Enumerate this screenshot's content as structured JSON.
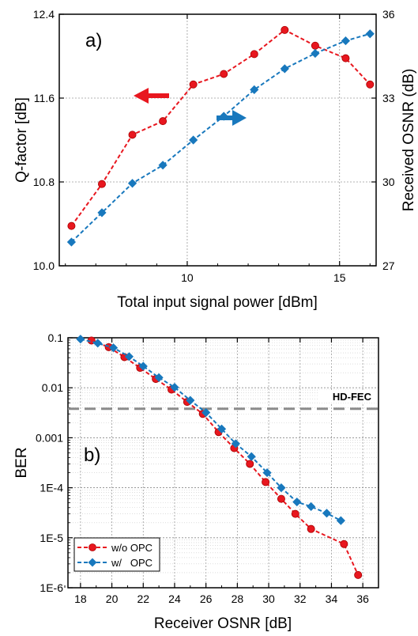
{
  "chart_data": [
    {
      "type": "line",
      "panel_label": "a)",
      "xlabel": "Total input signal power [dBm]",
      "ylabel": "Q-factor [dB]",
      "y2label": "Received OSNR (dB)",
      "xlim": [
        5.8,
        16.2
      ],
      "ylim": [
        10.0,
        12.4
      ],
      "y2lim": [
        27,
        36
      ],
      "xticks": [
        10,
        15
      ],
      "yticks": [
        10.0,
        10.8,
        11.6,
        12.4
      ],
      "y2ticks": [
        27,
        30,
        33,
        36
      ],
      "grid": true,
      "series": [
        {
          "axis": "left",
          "color": "#e8171f",
          "marker": "circle",
          "x": [
            6.2,
            7.2,
            8.2,
            9.2,
            10.2,
            11.2,
            12.2,
            13.2,
            14.2,
            15.2,
            16.0
          ],
          "y": [
            10.38,
            10.78,
            11.25,
            11.38,
            11.73,
            11.83,
            12.02,
            12.25,
            12.1,
            11.98,
            11.73
          ]
        },
        {
          "axis": "right",
          "color": "#1878bd",
          "marker": "diamond",
          "x": [
            6.2,
            7.2,
            8.2,
            9.2,
            10.2,
            11.2,
            12.2,
            13.2,
            14.2,
            15.2,
            16.0
          ],
          "y": [
            27.85,
            28.9,
            29.95,
            30.6,
            31.5,
            32.35,
            33.3,
            34.05,
            34.6,
            35.05,
            35.3
          ]
        }
      ]
    },
    {
      "type": "line",
      "panel_label": "b)",
      "xlabel": "Receiver OSNR [dB]",
      "ylabel": "BER",
      "xlim": [
        17.2,
        37.0
      ],
      "ylim": [
        1e-06,
        0.1
      ],
      "yscale": "log",
      "xticks": [
        18,
        20,
        22,
        24,
        26,
        28,
        30,
        32,
        34,
        36
      ],
      "ytick_values": [
        0.1,
        0.01,
        0.001,
        0.0001,
        1e-05,
        1e-06
      ],
      "ytick_labels": [
        "0.1",
        "0.01",
        "0.001",
        "1E-4",
        "1E-5",
        "1E-6"
      ],
      "grid": true,
      "threshold": {
        "label": "HD-FEC",
        "value": 0.0038,
        "color": "#8c8c8c"
      },
      "legend_position": "bottom-left",
      "series": [
        {
          "name": "w/o OPC",
          "color": "#e8171f",
          "marker": "circle",
          "x": [
            18.7,
            19.8,
            20.8,
            21.8,
            22.8,
            23.8,
            24.8,
            25.8,
            26.8,
            27.8,
            28.8,
            29.8,
            30.8,
            31.7,
            32.7,
            34.8,
            35.7
          ],
          "y": [
            0.088,
            0.065,
            0.041,
            0.025,
            0.015,
            0.0092,
            0.0052,
            0.003,
            0.0013,
            0.00062,
            0.0003,
            0.00013,
            6e-05,
            3e-05,
            1.5e-05,
            7.5e-06,
            1.8e-06
          ]
        },
        {
          "name": "w/   OPC",
          "color": "#1878bd",
          "marker": "diamond",
          "x": [
            18.0,
            19.1,
            20.1,
            21.1,
            22.0,
            23.0,
            24.0,
            25.0,
            26.0,
            27.0,
            27.9,
            28.9,
            29.9,
            30.8,
            31.8,
            32.7,
            33.7,
            34.6
          ],
          "y": [
            0.094,
            0.078,
            0.063,
            0.042,
            0.027,
            0.016,
            0.0102,
            0.0056,
            0.0032,
            0.0015,
            0.00076,
            0.00042,
            0.0002,
            0.0001,
            5.2e-05,
            4.2e-05,
            3.1e-05,
            2.2e-05
          ]
        }
      ]
    }
  ]
}
